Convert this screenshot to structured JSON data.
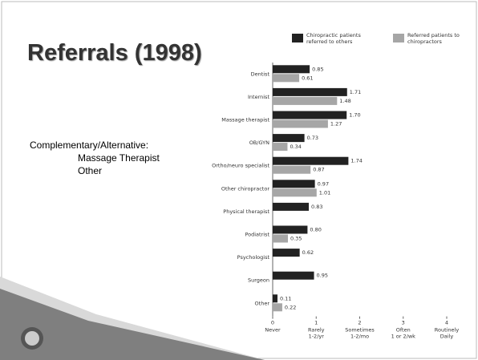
{
  "slide": {
    "title": "Referrals (1998)",
    "body": [
      "Complementary/Alternative:",
      "Massage Therapist",
      "Other"
    ]
  },
  "chart_data": {
    "type": "hbar",
    "categories": [
      "Dentist",
      "Internist",
      "Massage therapist",
      "OB/GYN",
      "Ortho/neuro specialist",
      "Other chiropractor",
      "Physical therapist",
      "Podiatrist",
      "Psychologist",
      "Surgeon",
      "Other"
    ],
    "series": [
      {
        "name": "Chiropractic patients referred to others",
        "color": "#222222",
        "values": [
          0.85,
          1.71,
          1.7,
          0.73,
          1.74,
          0.97,
          0.83,
          0.8,
          0.62,
          0.95,
          0.11
        ],
        "value_labels": [
          "0.85",
          "1.71",
          "1.70",
          "0.73",
          "1.74",
          "0.97",
          "0.83",
          "0.80",
          "0.62",
          "0.95",
          "0.11"
        ]
      },
      {
        "name": "Referred patients to chiropractors",
        "color": "#a6a6a6",
        "values": [
          0.61,
          1.48,
          1.27,
          0.34,
          0.87,
          1.01,
          null,
          0.35,
          null,
          null,
          0.22
        ],
        "value_labels": [
          "0.61",
          "1.48",
          "1.27",
          "0.34",
          "0.87",
          "1.01",
          null,
          "0.35",
          null,
          null,
          "0.22"
        ]
      }
    ],
    "xlim": [
      0,
      4
    ],
    "xticks": [
      0,
      1,
      2,
      3,
      4
    ],
    "xtick_sublabels": [
      [
        "Never"
      ],
      [
        "Rarely",
        "1-2/yr"
      ],
      [
        "Sometimes",
        "1-2/mo"
      ],
      [
        "Often",
        "1 or 2/wk"
      ],
      [
        "Routinely",
        "Daily"
      ]
    ],
    "legend": "top"
  }
}
